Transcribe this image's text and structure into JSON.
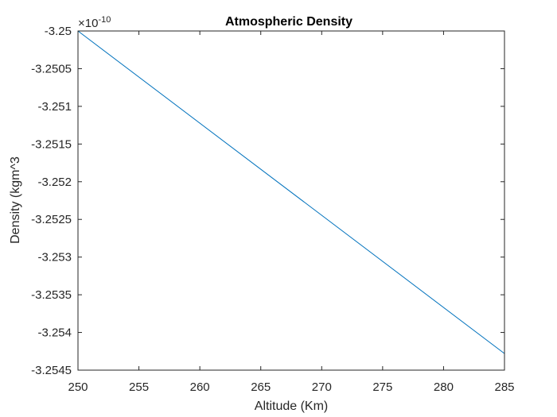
{
  "chart_data": {
    "type": "line",
    "title": "Atmospheric Density",
    "xlabel": "Altitude (Km)",
    "ylabel": "Density (kgm^3",
    "y_multiplier": {
      "base": "×10",
      "exponent": "-10"
    },
    "xlim": [
      250,
      285
    ],
    "ylim": [
      -3.2545,
      -3.25
    ],
    "x_ticks": [
      250,
      255,
      260,
      265,
      270,
      275,
      280,
      285
    ],
    "x_tick_labels": [
      "250",
      "255",
      "260",
      "265",
      "270",
      "275",
      "280",
      "285"
    ],
    "y_ticks": [
      -3.25,
      -3.2505,
      -3.251,
      -3.2515,
      -3.252,
      -3.2525,
      -3.253,
      -3.2535,
      -3.254,
      -3.2545
    ],
    "y_tick_labels": [
      "-3.25",
      "-3.2505",
      "-3.251",
      "-3.2515",
      "-3.252",
      "-3.2525",
      "-3.253",
      "-3.2535",
      "-3.254",
      "-3.2545"
    ],
    "grid": false,
    "series": [
      {
        "name": "Density",
        "color": "#0072bd",
        "x": [
          250,
          285
        ],
        "y": [
          -3.25,
          -3.25428
        ]
      }
    ]
  }
}
